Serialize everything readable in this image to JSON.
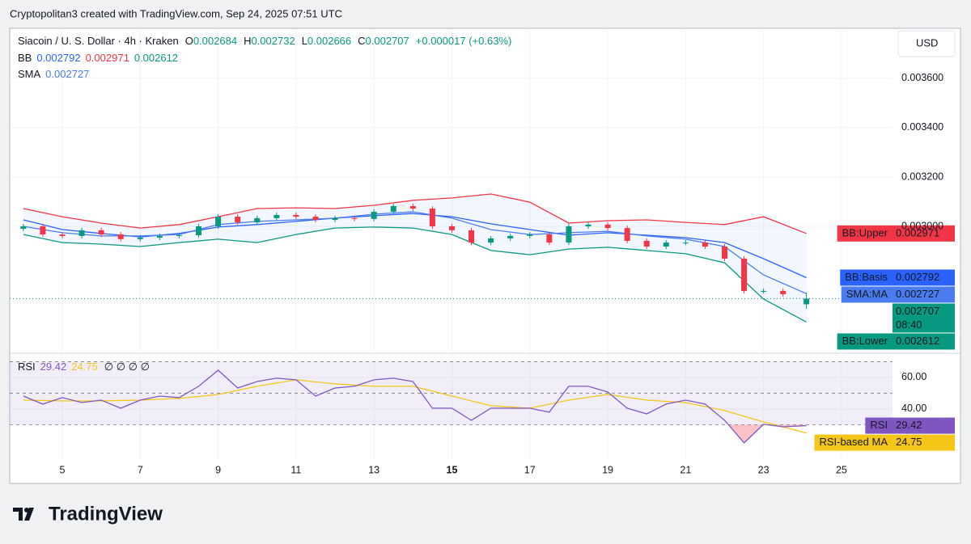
{
  "header": {
    "attribution": "Cryptopolitan3 created with TradingView.com, Sep 24, 2025 07:51 UTC",
    "currency": "USD",
    "brand": "TradingView"
  },
  "chart_data": [
    {
      "type": "candlestick",
      "title": "Siacoin / U. S. Dollar · 4h · Kraken",
      "ohlc_labels": [
        "O",
        "H",
        "L",
        "C"
      ],
      "change": "+0.000017 (+0.63%)",
      "countdown": "08:40",
      "indicator_labels": [
        "BB",
        "SMA"
      ],
      "x": [
        4,
        4.5,
        5,
        5.5,
        6,
        6.5,
        7,
        7.5,
        8,
        8.5,
        9,
        9.5,
        10,
        10.5,
        11,
        11.5,
        12,
        12.5,
        13,
        13.5,
        14,
        14.5,
        15,
        15.5,
        16,
        16.5,
        17,
        17.5,
        18,
        18.5,
        19,
        19.5,
        20,
        20.5,
        21,
        21.5,
        22,
        22.5,
        23,
        23.5,
        24.1
      ],
      "open": [
        0.00299,
        0.003,
        0.002967,
        0.002961,
        0.002984,
        0.002967,
        0.002948,
        0.002954,
        0.002961,
        0.002964,
        0.003,
        0.003039,
        0.003016,
        0.003033,
        0.003046,
        0.003039,
        0.003026,
        0.003033,
        0.00303,
        0.003059,
        0.003082,
        0.003072,
        0.003,
        0.002984,
        0.002934,
        0.002951,
        0.002961,
        0.002967,
        0.002934,
        0.003,
        0.003007,
        0.002993,
        0.002941,
        0.002918,
        0.002934,
        0.002934,
        0.002918,
        0.002869,
        0.002738,
        0.002738,
        0.002684
      ],
      "high": [
        0.00301,
        0.00301,
        0.002977,
        0.002994,
        0.002994,
        0.002977,
        0.002964,
        0.002971,
        0.002974,
        0.00301,
        0.003049,
        0.003049,
        0.003043,
        0.003056,
        0.003056,
        0.003049,
        0.003043,
        0.003043,
        0.003069,
        0.003092,
        0.003092,
        0.003082,
        0.00301,
        0.002994,
        0.002961,
        0.002971,
        0.002977,
        0.002977,
        0.00301,
        0.003017,
        0.003017,
        0.003003,
        0.002951,
        0.002944,
        0.002944,
        0.002944,
        0.002928,
        0.002879,
        0.002748,
        0.002748,
        0.002732
      ],
      "low": [
        0.00298,
        0.002957,
        0.002951,
        0.002951,
        0.002957,
        0.002938,
        0.002938,
        0.002944,
        0.002951,
        0.002954,
        0.00299,
        0.003006,
        0.003006,
        0.003023,
        0.003029,
        0.003016,
        0.003016,
        0.00302,
        0.00302,
        0.003049,
        0.003062,
        0.00299,
        0.002974,
        0.002924,
        0.002924,
        0.002941,
        0.002951,
        0.002924,
        0.002924,
        0.00299,
        0.002983,
        0.002931,
        0.002908,
        0.002908,
        0.002924,
        0.002908,
        0.002859,
        0.002728,
        0.002728,
        0.002715,
        0.002666
      ],
      "close": [
        0.003,
        0.002967,
        0.002961,
        0.002984,
        0.002967,
        0.002948,
        0.002954,
        0.002961,
        0.002964,
        0.003,
        0.003039,
        0.003016,
        0.003033,
        0.003046,
        0.003039,
        0.003026,
        0.003033,
        0.00303,
        0.003059,
        0.003082,
        0.003072,
        0.003,
        0.002984,
        0.002934,
        0.002951,
        0.002961,
        0.002967,
        0.002934,
        0.003,
        0.003007,
        0.002993,
        0.002941,
        0.002918,
        0.002934,
        0.002934,
        0.002918,
        0.002869,
        0.002738,
        0.002738,
        0.002725,
        0.002707
      ],
      "up_color": "#089981",
      "down_color": "#f23645",
      "band_fill": "rgba(41,98,255,0.06)",
      "overlays": [
        {
          "name": "BB:Basis",
          "color": "#2962ff",
          "x": [
            4,
            5,
            6,
            7,
            8,
            9,
            10,
            11,
            12,
            13,
            14,
            15,
            16,
            17,
            18,
            19,
            20,
            21,
            22,
            23,
            24.1
          ],
          "values": [
            0.003026,
            0.002987,
            0.002971,
            0.002957,
            0.002971,
            0.002997,
            0.003007,
            0.00302,
            0.003033,
            0.003043,
            0.003052,
            0.003039,
            0.00301,
            0.002987,
            0.002964,
            0.002974,
            0.002964,
            0.002954,
            0.002934,
            0.002869,
            0.002792
          ]
        },
        {
          "name": "BB:Upper",
          "color": "#f23645",
          "x": [
            4,
            5,
            6,
            7,
            8,
            9,
            10,
            11,
            12,
            13,
            14,
            15,
            16,
            17,
            18,
            19,
            20,
            21,
            22,
            23,
            24.1
          ],
          "values": [
            0.003072,
            0.003039,
            0.003013,
            0.002993,
            0.003007,
            0.003039,
            0.003072,
            0.003075,
            0.003072,
            0.003085,
            0.003105,
            0.003115,
            0.003131,
            0.003098,
            0.003013,
            0.003023,
            0.003026,
            0.003016,
            0.003007,
            0.003039,
            0.002971
          ]
        },
        {
          "name": "BB:Lower",
          "color": "#089981",
          "x": [
            4,
            5,
            6,
            7,
            8,
            9,
            10,
            11,
            12,
            13,
            14,
            15,
            16,
            17,
            18,
            19,
            20,
            21,
            22,
            23,
            24.1
          ],
          "values": [
            0.002967,
            0.002934,
            0.002928,
            0.002918,
            0.002934,
            0.002948,
            0.002934,
            0.002967,
            0.002993,
            0.002997,
            0.002993,
            0.002967,
            0.002902,
            0.002885,
            0.002908,
            0.002915,
            0.002902,
            0.002889,
            0.002852,
            0.002705,
            0.002612
          ]
        },
        {
          "name": "SMA:MA",
          "color": "#4a7cf0",
          "x": [
            4,
            5,
            6,
            7,
            8,
            9,
            10,
            11,
            12,
            13,
            14,
            15,
            16,
            17,
            18,
            19,
            20,
            21,
            22,
            23,
            24.1
          ],
          "values": [
            0.003,
            0.002974,
            0.002961,
            0.002961,
            0.002967,
            0.003007,
            0.00302,
            0.003026,
            0.003033,
            0.003049,
            0.003059,
            0.003033,
            0.002987,
            0.002967,
            0.002974,
            0.00298,
            0.002961,
            0.002948,
            0.002918,
            0.002803,
            0.002727
          ]
        }
      ],
      "xlim": [
        3.65,
        26.31
      ],
      "ylim": [
        0.002492,
        0.003793
      ],
      "yticks": [
        {
          "value": 0.003,
          "label": "0.003000"
        },
        {
          "value": 0.0032,
          "label": "0.003200"
        },
        {
          "value": 0.0034,
          "label": "0.003400"
        },
        {
          "value": 0.0036,
          "label": "0.003600"
        }
      ],
      "grid": true
    },
    {
      "type": "line",
      "title": "RSI",
      "header_extra": "∅ ∅ ∅ ∅",
      "series": [
        {
          "name": "RSI",
          "color": "#7e57c2",
          "x": [
            4,
            4.5,
            5,
            5.5,
            6,
            6.5,
            7,
            7.5,
            8,
            8.5,
            9,
            9.5,
            10,
            10.5,
            11,
            11.5,
            12,
            12.5,
            13,
            13.5,
            14,
            14.5,
            15,
            15.5,
            16,
            16.5,
            17,
            17.5,
            18,
            18.5,
            19,
            19.5,
            20,
            20.5,
            21,
            21.5,
            22,
            22.5,
            23,
            23.5,
            24.1
          ],
          "values": [
            48.2,
            43.1,
            47.2,
            44.1,
            45.6,
            40.5,
            45.6,
            48.2,
            47.2,
            54.4,
            64.6,
            53.3,
            57.4,
            59.5,
            58.5,
            48.2,
            53.3,
            54.4,
            58.5,
            59.5,
            57.4,
            40.5,
            40.5,
            32.8,
            40.5,
            40.5,
            40.5,
            38,
            54.4,
            54.4,
            50.8,
            40.5,
            36.9,
            43.1,
            45.6,
            43.1,
            32.8,
            18.5,
            30.3,
            28.7,
            29.42
          ]
        },
        {
          "name": "RSI-based MA",
          "color": "#f5c518",
          "x": [
            4,
            5,
            6,
            7,
            8,
            9,
            10,
            11,
            12,
            13,
            14,
            15,
            16,
            17,
            18,
            19,
            20,
            21,
            22,
            23,
            24.1
          ],
          "values": [
            45.6,
            45.1,
            45.1,
            45.6,
            46.7,
            49.2,
            54.4,
            58.5,
            55.9,
            54.4,
            54.4,
            48.2,
            42.1,
            40.5,
            45.6,
            49.2,
            45.6,
            44.1,
            39,
            31.8,
            24.75
          ]
        }
      ],
      "bands": [
        30,
        70
      ],
      "midline": 50,
      "xlim": [
        3.65,
        26.31
      ],
      "ylim": [
        8.2,
        73.8
      ],
      "yticks": [
        {
          "value": 40,
          "label": "40.00"
        },
        {
          "value": 60,
          "label": "60.00"
        }
      ],
      "xticks": [
        5,
        7,
        9,
        11,
        13,
        15,
        17,
        19,
        21,
        23,
        25
      ],
      "emphasized_xtick": 15,
      "grid": true
    }
  ]
}
